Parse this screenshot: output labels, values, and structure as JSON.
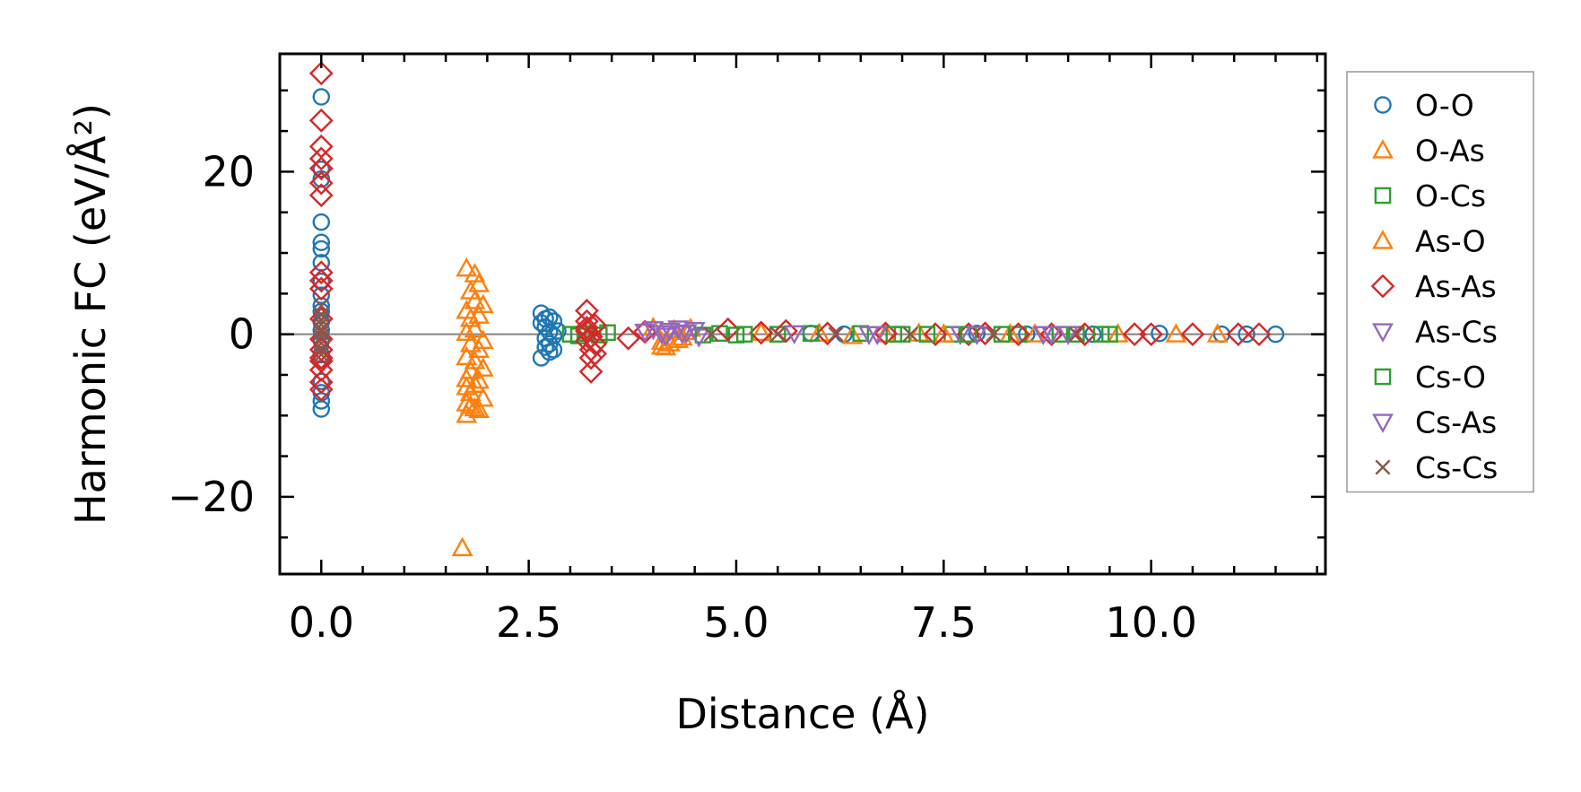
{
  "chart_data": {
    "type": "scatter",
    "title": "",
    "xlabel": "Distance (Å)",
    "ylabel": "Harmonic FC (eV/Å²)",
    "xlim": [
      -0.5,
      12.1
    ],
    "ylim": [
      -29.5,
      34.5
    ],
    "xticks": [
      0.0,
      2.5,
      5.0,
      7.5,
      10.0
    ],
    "xtick_labels": [
      "0.0",
      "2.5",
      "5.0",
      "7.5",
      "10.0"
    ],
    "yticks": [
      -20,
      0,
      20
    ],
    "ytick_labels": [
      "−20",
      "0",
      "20"
    ],
    "hline": 0,
    "legend_position": "right, outside plot",
    "series": [
      {
        "name": "O-O",
        "marker": "circle",
        "color": "#1f77b4",
        "x": [
          0,
          0,
          0,
          0,
          0,
          0,
          0,
          0,
          0,
          0,
          0,
          0,
          0,
          0,
          0,
          0,
          0,
          0,
          0,
          0,
          2.65,
          2.65,
          2.65,
          2.7,
          2.7,
          2.7,
          2.7,
          2.75,
          2.75,
          2.75,
          2.75,
          2.8,
          2.8,
          2.8,
          2.85,
          5.9,
          6.3,
          7.9,
          8.5,
          9.3,
          10.1,
          10.85,
          11.15,
          11.5
        ],
        "y": [
          29.2,
          20.3,
          19.1,
          13.8,
          11.3,
          10.5,
          8.8,
          6.5,
          4.8,
          3.5,
          2.8,
          1.5,
          0.5,
          -0.8,
          -2.5,
          -3.2,
          -5.8,
          -7.2,
          -8.2,
          -9.2,
          2.6,
          1.4,
          -2.9,
          1.9,
          0.9,
          -0.5,
          -1.6,
          2.1,
          0.3,
          -1.2,
          -2.2,
          1.6,
          -0.2,
          -1.9,
          0.4,
          0.1,
          0,
          0.1,
          0,
          0,
          0.1,
          0,
          0,
          0
        ]
      },
      {
        "name": "O-As",
        "marker": "triangle-up",
        "color": "#ff7f0e",
        "x": [
          1.75,
          1.75,
          1.75,
          1.75,
          1.75,
          1.75,
          1.75,
          1.8,
          1.8,
          1.8,
          1.8,
          1.8,
          1.8,
          1.85,
          1.85,
          1.85,
          1.85,
          1.85,
          1.85,
          1.9,
          1.9,
          1.9,
          1.9,
          1.9,
          1.95,
          1.95,
          1.95,
          1.95,
          1.7,
          1.75,
          4.1,
          4.2,
          4.3,
          4.4,
          6.4,
          7.2,
          8.6,
          9.6,
          10.3,
          10.8
        ],
        "y": [
          8.1,
          2.9,
          0.2,
          -2.8,
          -5.5,
          -8.5,
          -9.9,
          5.3,
          1.9,
          -1.2,
          -4.5,
          -7.2,
          -8.8,
          7.4,
          4.1,
          0.6,
          -3.3,
          -6.2,
          -9.1,
          6.2,
          2.3,
          -1.9,
          -5.7,
          -9.3,
          3.6,
          -0.8,
          -4.2,
          -7.9,
          -26.3,
          -6.5,
          -1.5,
          -1.1,
          -0.7,
          0.3,
          -0.2,
          0.1,
          0,
          0,
          0,
          0
        ]
      },
      {
        "name": "O-Cs",
        "marker": "square",
        "color": "#2ca02c",
        "x": [
          3.0,
          3.1,
          3.2,
          3.35,
          3.45,
          4.8,
          5.0,
          5.5,
          6.5,
          7.0,
          7.6,
          8.4,
          9.1,
          9.5
        ],
        "y": [
          0,
          -0.2,
          0.1,
          -0.1,
          0.2,
          0.1,
          -0.1,
          0,
          0.1,
          0,
          0,
          0,
          0,
          0
        ]
      },
      {
        "name": "As-O",
        "marker": "triangle-up",
        "color": "#ff7f0e",
        "x": [
          4.0,
          4.1,
          4.15,
          4.25,
          4.35,
          4.45,
          5.3,
          6.0,
          6.8,
          7.5,
          8.3
        ],
        "y": [
          0.8,
          -0.9,
          -1.6,
          0.5,
          -0.4,
          0.7,
          0.2,
          0.1,
          0,
          0,
          0
        ]
      },
      {
        "name": "As-As",
        "marker": "diamond",
        "color": "#d62728",
        "x": [
          0,
          0,
          0,
          0,
          0,
          0,
          0,
          0,
          0,
          0,
          0,
          0,
          0,
          0,
          0,
          0,
          0,
          0,
          3.2,
          3.2,
          3.2,
          3.2,
          3.25,
          3.25,
          3.25,
          3.3,
          3.3,
          3.3,
          3.25,
          3.2,
          3.7,
          3.9,
          4.9,
          5.3,
          5.6,
          6.1,
          6.8,
          7.4,
          7.8,
          8.0,
          8.4,
          8.8,
          9.2,
          9.8,
          10.0,
          10.5,
          11.05,
          11.3
        ],
        "y": [
          32.1,
          26.3,
          23.1,
          21.6,
          20.4,
          18.6,
          17.1,
          7.6,
          6.6,
          5.6,
          1.9,
          -0.6,
          -1.9,
          -2.9,
          -3.3,
          -4.4,
          -5.9,
          -6.8,
          2.9,
          1.6,
          0.4,
          -0.8,
          -1.9,
          -2.9,
          -0.3,
          1.1,
          -1.2,
          -2.4,
          -4.6,
          0.8,
          -0.5,
          0.3,
          0.6,
          0.2,
          0.4,
          0.1,
          0.1,
          0,
          0,
          0.1,
          0,
          0,
          0,
          0,
          0,
          0,
          0,
          0
        ]
      },
      {
        "name": "As-Cs",
        "marker": "triangle-down",
        "color": "#9467bd",
        "x": [
          3.9,
          4.0,
          4.1,
          4.2,
          4.3,
          4.4,
          4.5,
          6.6,
          7.7,
          8.7
        ],
        "y": [
          0.3,
          0.6,
          0.1,
          0.4,
          0.7,
          0.2,
          0.5,
          0,
          0,
          0
        ]
      },
      {
        "name": "Cs-O",
        "marker": "square",
        "color": "#2ca02c",
        "x": [
          4.6,
          5.1,
          5.9,
          6.9,
          7.3,
          7.8,
          8.2,
          8.9,
          9.4
        ],
        "y": [
          -0.1,
          0,
          0.1,
          0,
          0,
          0,
          0,
          0,
          0
        ]
      },
      {
        "name": "Cs-As",
        "marker": "triangle-down",
        "color": "#9467bd",
        "x": [
          4.15,
          4.35,
          4.55,
          5.7,
          6.7,
          7.9,
          8.8,
          9.0
        ],
        "y": [
          -0.2,
          0.1,
          -0.3,
          0.1,
          0,
          0,
          0,
          0
        ]
      },
      {
        "name": "Cs-Cs",
        "marker": "x",
        "color": "#8c564b",
        "x": [
          0,
          0,
          0,
          0,
          0,
          0,
          0,
          0,
          0,
          0,
          4.7,
          5.5,
          6.2,
          7.1,
          8.1,
          9.1
        ],
        "y": [
          3.5,
          2.4,
          1.8,
          1.2,
          0.6,
          0.2,
          -0.3,
          -1.1,
          -1.8,
          -2.5,
          0,
          0,
          0,
          0,
          0,
          0
        ]
      }
    ]
  }
}
